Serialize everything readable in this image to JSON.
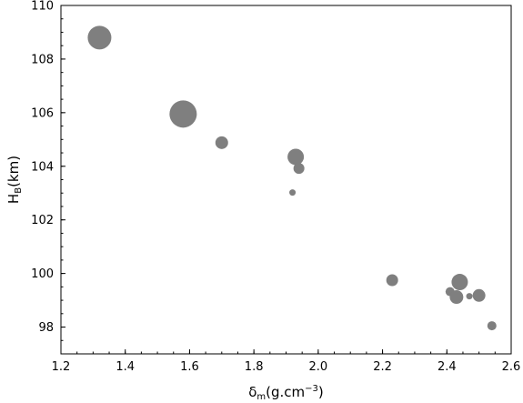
{
  "chart_data": {
    "type": "scatter",
    "title": "",
    "xlabel": {
      "base": "δ",
      "sub": "m",
      "rest": "(g.cm",
      "sup": "−3",
      "close": ")"
    },
    "ylabel": {
      "base": "H",
      "sub": "B",
      "rest": "(km)"
    },
    "xlim": [
      1.2,
      2.6
    ],
    "ylim": [
      97,
      110
    ],
    "xticks": [
      1.2,
      1.4,
      1.6,
      1.8,
      2.0,
      2.2,
      2.4,
      2.6
    ],
    "xtick_labels": [
      "1.2",
      "1.4",
      "1.6",
      "1.8",
      "2.0",
      "2.2",
      "2.4",
      "2.6"
    ],
    "yticks": [
      98,
      100,
      102,
      104,
      106,
      108,
      110
    ],
    "ytick_labels": [
      "98",
      "100",
      "102",
      "104",
      "106",
      "108",
      "110"
    ],
    "grid": false,
    "marker_color": "#7f7f7f",
    "points": [
      {
        "x": 1.32,
        "y": 108.8,
        "size": 13
      },
      {
        "x": 1.58,
        "y": 105.95,
        "size": 15
      },
      {
        "x": 1.7,
        "y": 104.88,
        "size": 7
      },
      {
        "x": 1.93,
        "y": 104.35,
        "size": 9
      },
      {
        "x": 1.94,
        "y": 103.92,
        "size": 6
      },
      {
        "x": 1.92,
        "y": 103.02,
        "size": 3.5
      },
      {
        "x": 2.23,
        "y": 99.75,
        "size": 6.5
      },
      {
        "x": 2.41,
        "y": 99.32,
        "size": 5
      },
      {
        "x": 2.43,
        "y": 99.12,
        "size": 7.5
      },
      {
        "x": 2.44,
        "y": 99.68,
        "size": 9
      },
      {
        "x": 2.47,
        "y": 99.15,
        "size": 3.5
      },
      {
        "x": 2.5,
        "y": 99.18,
        "size": 7
      },
      {
        "x": 2.54,
        "y": 98.05,
        "size": 5
      }
    ]
  }
}
